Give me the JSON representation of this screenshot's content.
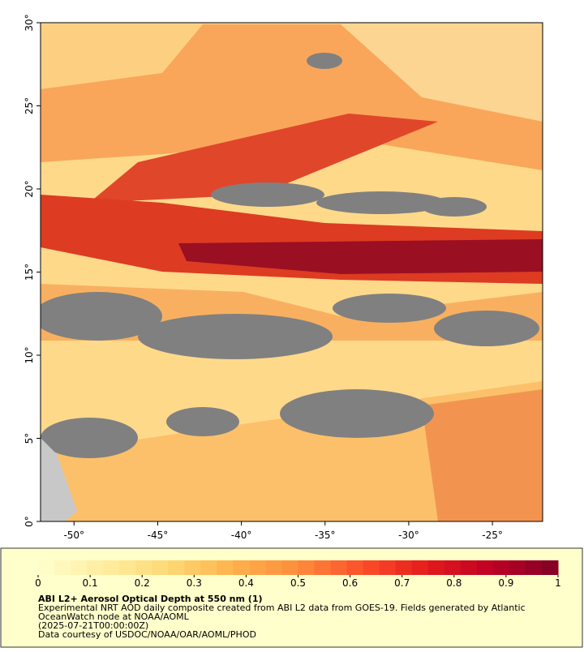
{
  "map": {
    "xlim": [
      -52,
      -22
    ],
    "ylim": [
      0,
      30
    ],
    "xticks": [
      {
        "value": -50,
        "label": "-50°"
      },
      {
        "value": -45,
        "label": "-45°"
      },
      {
        "value": -40,
        "label": "-40°"
      },
      {
        "value": -35,
        "label": "-35°"
      },
      {
        "value": -30,
        "label": "-30°"
      },
      {
        "value": -25,
        "label": "-25°"
      }
    ],
    "yticks": [
      {
        "value": 0,
        "label": "0°"
      },
      {
        "value": 5,
        "label": "5°"
      },
      {
        "value": 10,
        "label": "10°"
      },
      {
        "value": 15,
        "label": "15°"
      },
      {
        "value": 20,
        "label": "20°"
      },
      {
        "value": 25,
        "label": "25°"
      },
      {
        "value": 30,
        "label": "30°"
      }
    ]
  },
  "colorbar": {
    "lim": [
      0,
      1
    ],
    "ticks": [
      0,
      0.1,
      0.2,
      0.3,
      0.4,
      0.5,
      0.6,
      0.7,
      0.8,
      0.9,
      1
    ],
    "colors": [
      "#ffffcc",
      "#ffeda0",
      "#fed976",
      "#feb24c",
      "#fd8d3c",
      "#fc4e2a",
      "#e31a1c",
      "#bd0026",
      "#800026"
    ]
  },
  "caption": {
    "title": "ABI L2+ Aerosol Optical Depth at 550 nm (1)",
    "lines": [
      "Experimental NRT AOD daily composite created from ABI L2 data from GOES-19. Fields generated by Atlantic",
      "OceanWatch node at NOAA/AOML",
      "(2025-07-21T00:00:00Z)",
      "Data courtesy of USDOC/NOAA/OAR/AOML/PHOD"
    ]
  }
}
